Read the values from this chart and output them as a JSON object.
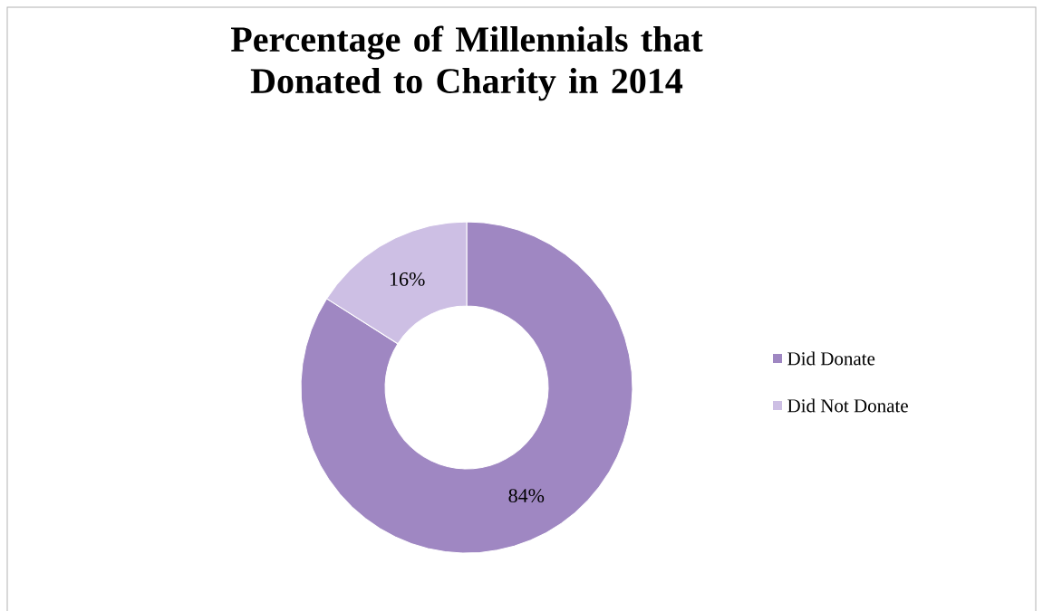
{
  "chart_data": {
    "type": "donut",
    "title": "Percentage of Millennials that Donated to Charity in 2014",
    "categories": [
      "Did Donate",
      "Did Not Donate"
    ],
    "values": [
      84,
      16
    ],
    "colors": [
      "#9f87c2",
      "#cdbfe4"
    ],
    "value_labels": [
      "84%",
      "16%"
    ],
    "legend": "right"
  }
}
